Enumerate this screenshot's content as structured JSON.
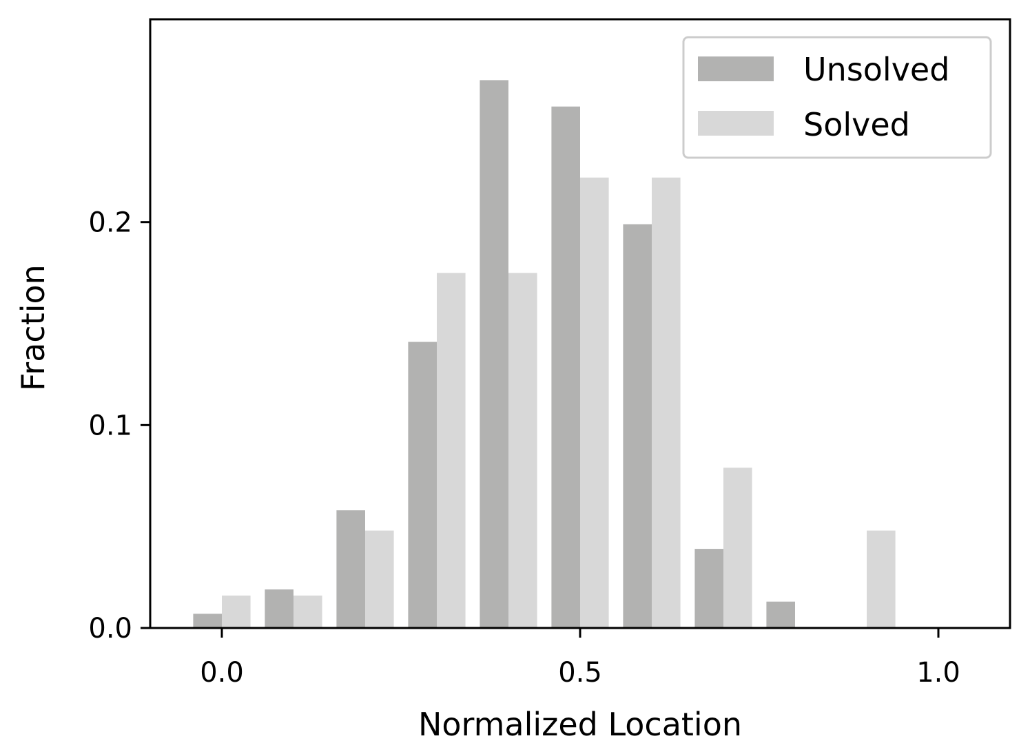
{
  "chart_data": {
    "type": "bar",
    "xlabel": "Normalized Location",
    "ylabel": "Fraction",
    "xlim": [
      -0.1,
      1.1
    ],
    "ylim": [
      0,
      0.3
    ],
    "xticks": [
      0.0,
      0.5,
      1.0
    ],
    "xtick_labels": [
      "0.0",
      "0.5",
      "1.0"
    ],
    "yticks": [
      0.0,
      0.1,
      0.2
    ],
    "ytick_labels": [
      "0.0",
      "0.1",
      "0.2"
    ],
    "bin_centers": [
      0.0,
      0.1,
      0.2,
      0.3,
      0.4,
      0.5,
      0.6,
      0.7,
      0.8,
      0.9
    ],
    "bar_width": 0.04,
    "grid": false,
    "legend_position": "top-right",
    "series": [
      {
        "name": "Unsolved",
        "color": "#b2b2b1",
        "values": [
          0.007,
          0.019,
          0.058,
          0.141,
          0.27,
          0.257,
          0.199,
          0.039,
          0.013,
          0.0
        ]
      },
      {
        "name": "Solved",
        "color": "#d8d8d8",
        "values": [
          0.016,
          0.016,
          0.048,
          0.175,
          0.175,
          0.222,
          0.222,
          0.079,
          0.0,
          0.048
        ]
      }
    ]
  }
}
